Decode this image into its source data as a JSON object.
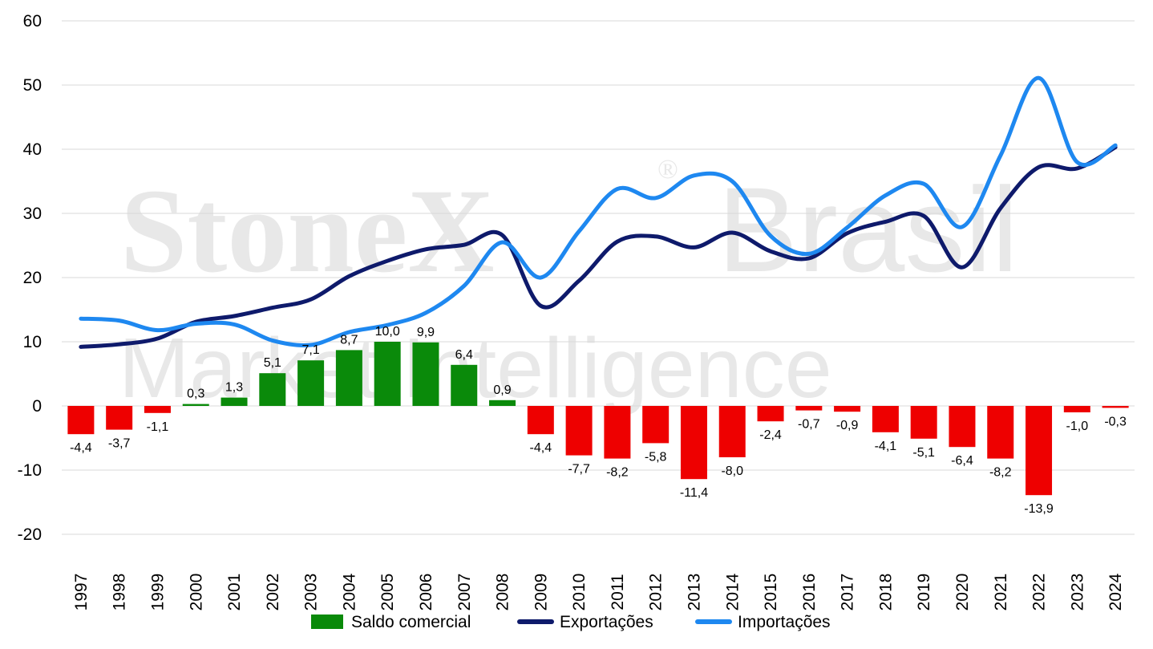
{
  "watermark": {
    "line1_bold": "StoneX",
    "line1_regular": "Brasil",
    "line2": "Market Intelligence",
    "registered": "®"
  },
  "chart_data": {
    "type": "bar",
    "title": "",
    "xlabel": "",
    "ylabel": "",
    "ylim": [
      -20,
      60
    ],
    "yticks": [
      -20,
      -10,
      0,
      10,
      20,
      30,
      40,
      50,
      60
    ],
    "grid": true,
    "legend_position": "bottom",
    "categories": [
      "1997",
      "1998",
      "1999",
      "2000",
      "2001",
      "2002",
      "2003",
      "2004",
      "2005",
      "2006",
      "2007",
      "2008",
      "2009",
      "2010",
      "2011",
      "2012",
      "2013",
      "2014",
      "2015",
      "2016",
      "2017",
      "2018",
      "2019",
      "2020",
      "2021",
      "2022",
      "2023",
      "2024"
    ],
    "series": [
      {
        "name": "Saldo comercial",
        "kind": "bar",
        "positive_color": "#0A8A0A",
        "negative_color": "#EE0000",
        "values": [
          -4.4,
          -3.7,
          -1.1,
          0.3,
          1.3,
          5.1,
          7.1,
          8.7,
          10.0,
          9.9,
          6.4,
          0.9,
          -4.4,
          -7.7,
          -8.2,
          -5.8,
          -11.4,
          -8.0,
          -2.4,
          -0.7,
          -0.9,
          -4.1,
          -5.1,
          -6.4,
          -8.2,
          -13.9,
          -1.0,
          -0.3
        ],
        "labels": [
          "-4,4",
          "-3,7",
          "-1,1",
          "0,3",
          "1,3",
          "5,1",
          "7,1",
          "8,7",
          "10,0",
          "9,9",
          "6,4",
          "0,9",
          "-4,4",
          "-7,7",
          "-8,2",
          "-5,8",
          "-11,4",
          "-8,0",
          "-2,4",
          "-0,7",
          "-0,9",
          "-4,1",
          "-5,1",
          "-6,4",
          "-8,2",
          "-13,9",
          "-1,0",
          "-0,3"
        ]
      },
      {
        "name": "Exportações",
        "kind": "line",
        "color": "#0E1A6B",
        "values": [
          9.2,
          9.6,
          10.5,
          13.1,
          14.0,
          15.3,
          16.6,
          20.2,
          22.6,
          24.4,
          25.1,
          26.6,
          15.6,
          19.5,
          25.6,
          26.4,
          24.7,
          27.0,
          24.1,
          23.0,
          26.9,
          28.7,
          29.6,
          21.6,
          30.8,
          37.2,
          37.0,
          40.3
        ]
      },
      {
        "name": "Importações",
        "kind": "line",
        "color": "#1E88F0",
        "values": [
          13.6,
          13.3,
          11.8,
          12.8,
          12.7,
          10.2,
          9.5,
          11.5,
          12.6,
          14.5,
          18.7,
          25.5,
          20.0,
          27.2,
          33.8,
          32.4,
          35.9,
          35.0,
          26.5,
          23.7,
          27.8,
          32.8,
          34.6,
          27.9,
          39.0,
          51.1,
          38.0,
          40.6
        ]
      }
    ]
  }
}
